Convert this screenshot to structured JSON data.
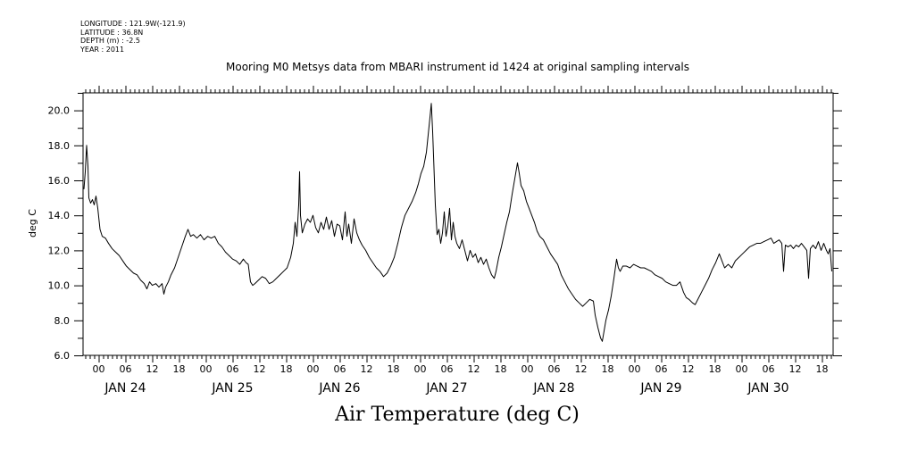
{
  "meta": {
    "longitude": "LONGITUDE : 121.9W(-121.9)",
    "latitude": "LATITUDE : 36.8N",
    "depth": "DEPTH (m) : -2.5",
    "year": "YEAR : 2011"
  },
  "chart_data": {
    "type": "line",
    "title": "Mooring M0 Metsys data from MBARI instrument id 1424 at original sampling intervals",
    "xlabel": "Air Temperature (deg C)",
    "ylabel": "deg C",
    "ylim": [
      6.0,
      21.0
    ],
    "yticks": [
      6.0,
      8.0,
      10.0,
      12.0,
      14.0,
      16.0,
      18.0,
      20.0
    ],
    "ytick_labels": [
      "6.0",
      "8.0",
      "10.0",
      "12.0",
      "14.0",
      "16.0",
      "18.0",
      "20.0"
    ],
    "xlim_hours": [
      -3.5,
      164.5
    ],
    "x_hour_labels": [
      "00",
      "06",
      "12",
      "18",
      "00",
      "06",
      "12",
      "18",
      "00",
      "06",
      "12",
      "18",
      "00",
      "06",
      "12",
      "18",
      "00",
      "06",
      "12",
      "18",
      "00",
      "06",
      "12",
      "18",
      "00",
      "06",
      "12",
      "18"
    ],
    "x_hour_positions": [
      0,
      6,
      12,
      18,
      24,
      30,
      36,
      42,
      48,
      54,
      60,
      66,
      72,
      78,
      84,
      90,
      96,
      102,
      108,
      114,
      120,
      126,
      132,
      138,
      144,
      150,
      156,
      162
    ],
    "date_labels": [
      "JAN 24",
      "JAN 25",
      "JAN 26",
      "JAN 27",
      "JAN 28",
      "JAN 29",
      "JAN 30"
    ],
    "date_positions": [
      6,
      30,
      54,
      78,
      102,
      126,
      150
    ],
    "grid": false,
    "series": [
      {
        "color": "#000000",
        "points": [
          [
            -3.3,
            15.5
          ],
          [
            -3.0,
            16.5
          ],
          [
            -2.7,
            18.0
          ],
          [
            -2.4,
            16.8
          ],
          [
            -2.2,
            15.0
          ],
          [
            -1.8,
            14.7
          ],
          [
            -1.4,
            14.9
          ],
          [
            -1.0,
            14.6
          ],
          [
            -0.6,
            15.1
          ],
          [
            -0.2,
            14.4
          ],
          [
            0.3,
            13.2
          ],
          [
            0.8,
            12.8
          ],
          [
            1.5,
            12.7
          ],
          [
            2.2,
            12.4
          ],
          [
            3.0,
            12.1
          ],
          [
            3.8,
            11.9
          ],
          [
            4.6,
            11.7
          ],
          [
            5.4,
            11.4
          ],
          [
            6.2,
            11.1
          ],
          [
            7.0,
            10.9
          ],
          [
            7.8,
            10.7
          ],
          [
            8.6,
            10.6
          ],
          [
            9.4,
            10.3
          ],
          [
            10.2,
            10.1
          ],
          [
            10.8,
            9.8
          ],
          [
            11.4,
            10.2
          ],
          [
            12.0,
            10.0
          ],
          [
            12.8,
            10.1
          ],
          [
            13.5,
            9.9
          ],
          [
            14.2,
            10.1
          ],
          [
            14.6,
            9.5
          ],
          [
            15.0,
            9.9
          ],
          [
            15.6,
            10.2
          ],
          [
            16.2,
            10.6
          ],
          [
            17.0,
            11.0
          ],
          [
            17.8,
            11.6
          ],
          [
            18.6,
            12.2
          ],
          [
            19.4,
            12.8
          ],
          [
            20.0,
            13.2
          ],
          [
            20.6,
            12.8
          ],
          [
            21.2,
            12.9
          ],
          [
            22.0,
            12.7
          ],
          [
            22.8,
            12.9
          ],
          [
            23.6,
            12.6
          ],
          [
            24.4,
            12.8
          ],
          [
            25.2,
            12.7
          ],
          [
            26.0,
            12.8
          ],
          [
            26.8,
            12.4
          ],
          [
            27.6,
            12.2
          ],
          [
            28.4,
            11.9
          ],
          [
            29.2,
            11.7
          ],
          [
            30.0,
            11.5
          ],
          [
            30.8,
            11.4
          ],
          [
            31.6,
            11.2
          ],
          [
            32.4,
            11.5
          ],
          [
            33.0,
            11.3
          ],
          [
            33.5,
            11.2
          ],
          [
            34.0,
            10.2
          ],
          [
            34.5,
            10.0
          ],
          [
            35.0,
            10.1
          ],
          [
            35.8,
            10.3
          ],
          [
            36.6,
            10.5
          ],
          [
            37.4,
            10.4
          ],
          [
            38.2,
            10.1
          ],
          [
            39.0,
            10.2
          ],
          [
            39.8,
            10.4
          ],
          [
            40.6,
            10.6
          ],
          [
            41.4,
            10.8
          ],
          [
            42.2,
            11.0
          ],
          [
            43.0,
            11.6
          ],
          [
            43.6,
            12.4
          ],
          [
            44.0,
            13.6
          ],
          [
            44.4,
            12.8
          ],
          [
            44.8,
            14.6
          ],
          [
            45.0,
            16.5
          ],
          [
            45.2,
            14.0
          ],
          [
            45.6,
            13.0
          ],
          [
            46.2,
            13.5
          ],
          [
            46.8,
            13.8
          ],
          [
            47.4,
            13.6
          ],
          [
            48.0,
            14.0
          ],
          [
            48.6,
            13.3
          ],
          [
            49.2,
            13.0
          ],
          [
            49.8,
            13.6
          ],
          [
            50.4,
            13.2
          ],
          [
            51.0,
            13.9
          ],
          [
            51.6,
            13.2
          ],
          [
            52.2,
            13.7
          ],
          [
            52.8,
            12.8
          ],
          [
            53.4,
            13.5
          ],
          [
            54.0,
            13.4
          ],
          [
            54.6,
            12.6
          ],
          [
            55.2,
            14.2
          ],
          [
            55.6,
            12.8
          ],
          [
            56.0,
            13.5
          ],
          [
            56.6,
            12.4
          ],
          [
            57.2,
            13.8
          ],
          [
            57.8,
            13.0
          ],
          [
            58.4,
            12.6
          ],
          [
            59.0,
            12.3
          ],
          [
            59.8,
            12.0
          ],
          [
            60.6,
            11.6
          ],
          [
            61.4,
            11.3
          ],
          [
            62.2,
            11.0
          ],
          [
            63.0,
            10.8
          ],
          [
            63.8,
            10.5
          ],
          [
            64.6,
            10.7
          ],
          [
            65.4,
            11.1
          ],
          [
            66.2,
            11.6
          ],
          [
            67.0,
            12.4
          ],
          [
            67.8,
            13.3
          ],
          [
            68.6,
            14.0
          ],
          [
            69.4,
            14.4
          ],
          [
            70.2,
            14.8
          ],
          [
            71.0,
            15.3
          ],
          [
            71.6,
            15.8
          ],
          [
            72.2,
            16.4
          ],
          [
            72.8,
            16.8
          ],
          [
            73.4,
            17.6
          ],
          [
            73.8,
            18.6
          ],
          [
            74.2,
            19.6
          ],
          [
            74.5,
            20.4
          ],
          [
            74.8,
            18.8
          ],
          [
            75.0,
            17.4
          ],
          [
            75.4,
            14.6
          ],
          [
            75.8,
            12.9
          ],
          [
            76.2,
            13.2
          ],
          [
            76.6,
            12.4
          ],
          [
            77.0,
            13.0
          ],
          [
            77.4,
            14.2
          ],
          [
            77.8,
            12.8
          ],
          [
            78.2,
            13.4
          ],
          [
            78.6,
            14.4
          ],
          [
            79.0,
            12.6
          ],
          [
            79.4,
            13.6
          ],
          [
            79.8,
            12.8
          ],
          [
            80.2,
            12.4
          ],
          [
            80.8,
            12.1
          ],
          [
            81.4,
            12.6
          ],
          [
            82.0,
            12.0
          ],
          [
            82.6,
            11.4
          ],
          [
            83.2,
            12.0
          ],
          [
            83.8,
            11.6
          ],
          [
            84.4,
            11.8
          ],
          [
            85.0,
            11.3
          ],
          [
            85.6,
            11.6
          ],
          [
            86.2,
            11.2
          ],
          [
            86.8,
            11.5
          ],
          [
            87.4,
            11.0
          ],
          [
            88.0,
            10.6
          ],
          [
            88.6,
            10.4
          ],
          [
            89.0,
            10.8
          ],
          [
            89.6,
            11.6
          ],
          [
            90.2,
            12.2
          ],
          [
            90.8,
            12.9
          ],
          [
            91.4,
            13.6
          ],
          [
            92.0,
            14.2
          ],
          [
            92.6,
            15.2
          ],
          [
            93.0,
            15.8
          ],
          [
            93.4,
            16.4
          ],
          [
            93.8,
            17.0
          ],
          [
            94.2,
            16.4
          ],
          [
            94.6,
            15.7
          ],
          [
            95.2,
            15.4
          ],
          [
            95.8,
            14.8
          ],
          [
            96.4,
            14.4
          ],
          [
            97.0,
            14.0
          ],
          [
            97.6,
            13.6
          ],
          [
            98.2,
            13.1
          ],
          [
            98.8,
            12.8
          ],
          [
            99.6,
            12.6
          ],
          [
            100.4,
            12.2
          ],
          [
            101.2,
            11.8
          ],
          [
            102.0,
            11.5
          ],
          [
            102.8,
            11.2
          ],
          [
            103.6,
            10.6
          ],
          [
            104.4,
            10.2
          ],
          [
            105.2,
            9.8
          ],
          [
            106.0,
            9.5
          ],
          [
            106.8,
            9.2
          ],
          [
            107.6,
            9.0
          ],
          [
            108.4,
            8.8
          ],
          [
            109.2,
            9.0
          ],
          [
            110.0,
            9.2
          ],
          [
            110.8,
            9.1
          ],
          [
            111.2,
            8.3
          ],
          [
            111.8,
            7.6
          ],
          [
            112.4,
            7.0
          ],
          [
            112.8,
            6.8
          ],
          [
            113.2,
            7.4
          ],
          [
            113.6,
            8.0
          ],
          [
            114.2,
            8.6
          ],
          [
            114.8,
            9.4
          ],
          [
            115.4,
            10.4
          ],
          [
            116.0,
            11.5
          ],
          [
            116.4,
            11.0
          ],
          [
            116.8,
            10.8
          ],
          [
            117.4,
            11.1
          ],
          [
            118.2,
            11.1
          ],
          [
            119.0,
            11.0
          ],
          [
            119.8,
            11.2
          ],
          [
            120.6,
            11.1
          ],
          [
            121.4,
            11.0
          ],
          [
            122.2,
            11.0
          ],
          [
            123.0,
            10.9
          ],
          [
            123.8,
            10.8
          ],
          [
            124.6,
            10.6
          ],
          [
            125.4,
            10.5
          ],
          [
            126.2,
            10.4
          ],
          [
            127.0,
            10.2
          ],
          [
            127.8,
            10.1
          ],
          [
            128.6,
            10.0
          ],
          [
            129.4,
            10.0
          ],
          [
            130.2,
            10.2
          ],
          [
            131.0,
            9.6
          ],
          [
            131.6,
            9.3
          ],
          [
            132.2,
            9.2
          ],
          [
            133.0,
            9.0
          ],
          [
            133.6,
            8.9
          ],
          [
            134.2,
            9.2
          ],
          [
            135.0,
            9.6
          ],
          [
            135.8,
            10.0
          ],
          [
            136.6,
            10.4
          ],
          [
            137.4,
            10.9
          ],
          [
            138.2,
            11.3
          ],
          [
            139.0,
            11.8
          ],
          [
            139.6,
            11.4
          ],
          [
            140.2,
            11.0
          ],
          [
            141.0,
            11.2
          ],
          [
            141.8,
            11.0
          ],
          [
            142.6,
            11.4
          ],
          [
            143.4,
            11.6
          ],
          [
            144.2,
            11.8
          ],
          [
            145.0,
            12.0
          ],
          [
            145.8,
            12.2
          ],
          [
            146.6,
            12.3
          ],
          [
            147.4,
            12.4
          ],
          [
            148.2,
            12.4
          ],
          [
            149.0,
            12.5
          ],
          [
            149.8,
            12.6
          ],
          [
            150.6,
            12.7
          ],
          [
            151.2,
            12.4
          ],
          [
            151.8,
            12.5
          ],
          [
            152.4,
            12.6
          ],
          [
            153.0,
            12.4
          ],
          [
            153.4,
            10.8
          ],
          [
            153.8,
            12.3
          ],
          [
            154.4,
            12.2
          ],
          [
            155.0,
            12.3
          ],
          [
            155.6,
            12.1
          ],
          [
            156.2,
            12.3
          ],
          [
            156.8,
            12.2
          ],
          [
            157.4,
            12.4
          ],
          [
            158.0,
            12.2
          ],
          [
            158.6,
            12.0
          ],
          [
            159.0,
            10.4
          ],
          [
            159.4,
            12.1
          ],
          [
            160.0,
            12.3
          ],
          [
            160.6,
            12.1
          ],
          [
            161.2,
            12.5
          ],
          [
            161.8,
            12.0
          ],
          [
            162.4,
            12.4
          ],
          [
            163.0,
            12.0
          ],
          [
            163.4,
            11.8
          ],
          [
            163.8,
            12.1
          ],
          [
            164.2,
            10.8
          ]
        ]
      }
    ]
  }
}
